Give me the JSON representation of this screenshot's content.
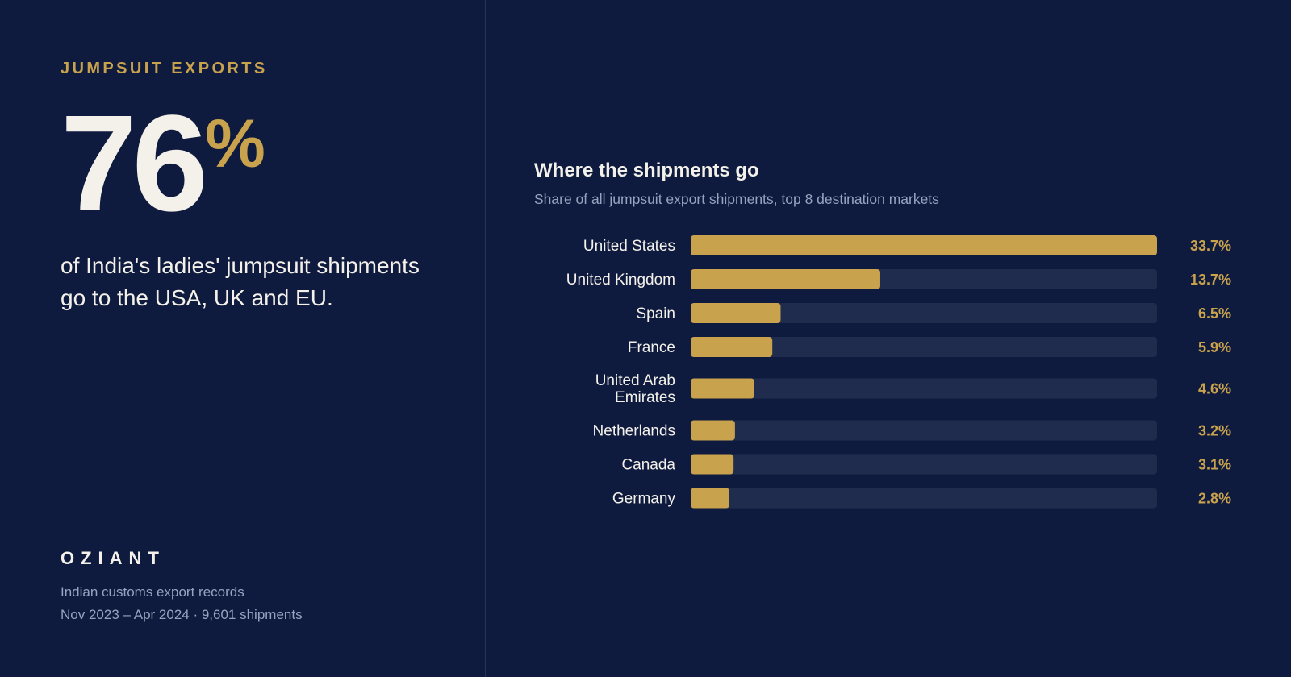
{
  "left": {
    "eyebrow": "JUMPSUIT EXPORTS",
    "headline_number": "76",
    "headline_suffix": "%",
    "statement": "of India's ladies' jumpsuit shipments go to the USA, UK and EU.",
    "brand": "OZIANT",
    "source_line1": "Indian customs export records",
    "source_line2": "Nov 2023 – Apr 2024 · 9,601 shipments"
  },
  "colors": {
    "background": "#0e1b3e",
    "accent": "#c9a24d",
    "track": "#1f2c4d",
    "text": "#f4f1ea",
    "muted": "#98a3bf"
  },
  "chart_data": {
    "type": "bar",
    "orientation": "horizontal",
    "title": "Where the shipments go",
    "subtitle": "Share of all jumpsuit export shipments, top 8 destination markets",
    "categories": [
      "United States",
      "United Kingdom",
      "Spain",
      "France",
      "United Arab Emirates",
      "Netherlands",
      "Canada",
      "Germany"
    ],
    "category_lines": [
      [
        "United States"
      ],
      [
        "United Kingdom"
      ],
      [
        "Spain"
      ],
      [
        "France"
      ],
      [
        "United Arab",
        "Emirates"
      ],
      [
        "Netherlands"
      ],
      [
        "Canada"
      ],
      [
        "Germany"
      ]
    ],
    "values": [
      33.7,
      13.7,
      6.5,
      5.9,
      4.6,
      3.2,
      3.1,
      2.8
    ],
    "value_labels": [
      "33.7%",
      "13.7%",
      "6.5%",
      "5.9%",
      "4.6%",
      "3.2%",
      "3.1%",
      "2.8%"
    ],
    "xlim": [
      0,
      33.7
    ],
    "grid": false,
    "legend": "none"
  }
}
